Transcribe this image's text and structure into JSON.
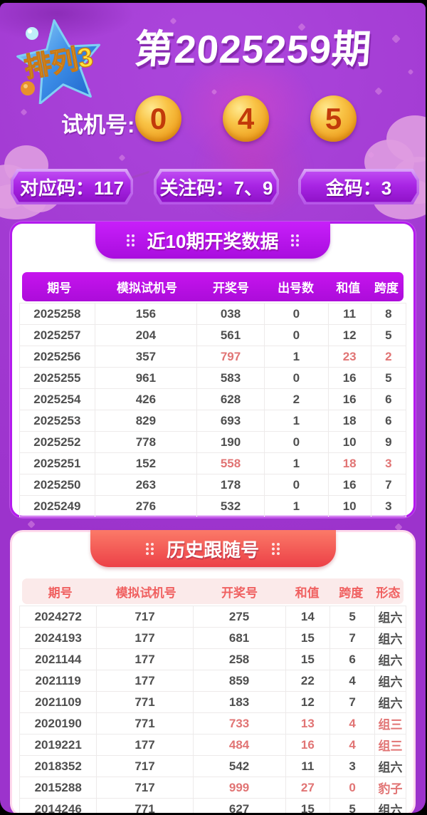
{
  "page": {
    "logo": "排列3",
    "title": "第2025259期",
    "test_label": "试机号:",
    "test_numbers": [
      "0",
      "4",
      "5"
    ],
    "codes": [
      {
        "label": "对应码：117"
      },
      {
        "label": "关注码：7、9"
      },
      {
        "label": "金码：3"
      }
    ],
    "colors": {
      "background": "#A23AD2",
      "card1_border": "#B41AEE",
      "table1_header": "#BB10E0",
      "tab2_red": "#EC4047",
      "table2_header_text": "#F06060",
      "gold_ball": "#F7B93E",
      "ball_digit": "#C23A0A",
      "highlight_red": "#E17474",
      "row_text": "#4F4F4F"
    }
  },
  "recent_table": {
    "title": "近10期开奖数据",
    "columns": [
      "期号",
      "模拟试机号",
      "开奖号",
      "出号数",
      "和值",
      "跨度"
    ],
    "rows": [
      {
        "cells": [
          "2025258",
          "156",
          "038",
          "0",
          "11",
          "8"
        ],
        "red": []
      },
      {
        "cells": [
          "2025257",
          "204",
          "561",
          "0",
          "12",
          "5"
        ],
        "red": []
      },
      {
        "cells": [
          "2025256",
          "357",
          "797",
          "1",
          "23",
          "2"
        ],
        "red": [
          2,
          4,
          5
        ]
      },
      {
        "cells": [
          "2025255",
          "961",
          "583",
          "0",
          "16",
          "5"
        ],
        "red": []
      },
      {
        "cells": [
          "2025254",
          "426",
          "628",
          "2",
          "16",
          "6"
        ],
        "red": []
      },
      {
        "cells": [
          "2025253",
          "829",
          "693",
          "1",
          "18",
          "6"
        ],
        "red": []
      },
      {
        "cells": [
          "2025252",
          "778",
          "190",
          "0",
          "10",
          "9"
        ],
        "red": []
      },
      {
        "cells": [
          "2025251",
          "152",
          "558",
          "1",
          "18",
          "3"
        ],
        "red": [
          2,
          4,
          5
        ]
      },
      {
        "cells": [
          "2025250",
          "263",
          "178",
          "0",
          "16",
          "7"
        ],
        "red": []
      },
      {
        "cells": [
          "2025249",
          "276",
          "532",
          "1",
          "10",
          "3"
        ],
        "red": []
      }
    ]
  },
  "history_table": {
    "title": "历史跟随号",
    "columns": [
      "期号",
      "模拟试机号",
      "开奖号",
      "和值",
      "跨度",
      "形态"
    ],
    "rows": [
      {
        "cells": [
          "2024272",
          "717",
          "275",
          "14",
          "5",
          "组六"
        ],
        "red": []
      },
      {
        "cells": [
          "2024193",
          "177",
          "681",
          "15",
          "7",
          "组六"
        ],
        "red": []
      },
      {
        "cells": [
          "2021144",
          "177",
          "258",
          "15",
          "6",
          "组六"
        ],
        "red": []
      },
      {
        "cells": [
          "2021119",
          "177",
          "859",
          "22",
          "4",
          "组六"
        ],
        "red": []
      },
      {
        "cells": [
          "2021109",
          "771",
          "183",
          "12",
          "7",
          "组六"
        ],
        "red": []
      },
      {
        "cells": [
          "2020190",
          "771",
          "733",
          "13",
          "4",
          "组三"
        ],
        "red": [
          2,
          3,
          4,
          5
        ]
      },
      {
        "cells": [
          "2019221",
          "177",
          "484",
          "16",
          "4",
          "组三"
        ],
        "red": [
          2,
          3,
          4,
          5
        ]
      },
      {
        "cells": [
          "2018352",
          "717",
          "542",
          "11",
          "3",
          "组六"
        ],
        "red": []
      },
      {
        "cells": [
          "2015288",
          "717",
          "999",
          "27",
          "0",
          "豹子"
        ],
        "red": [
          2,
          3,
          4,
          5
        ]
      },
      {
        "cells": [
          "2014246",
          "771",
          "627",
          "15",
          "5",
          "组六"
        ],
        "red": []
      }
    ]
  }
}
